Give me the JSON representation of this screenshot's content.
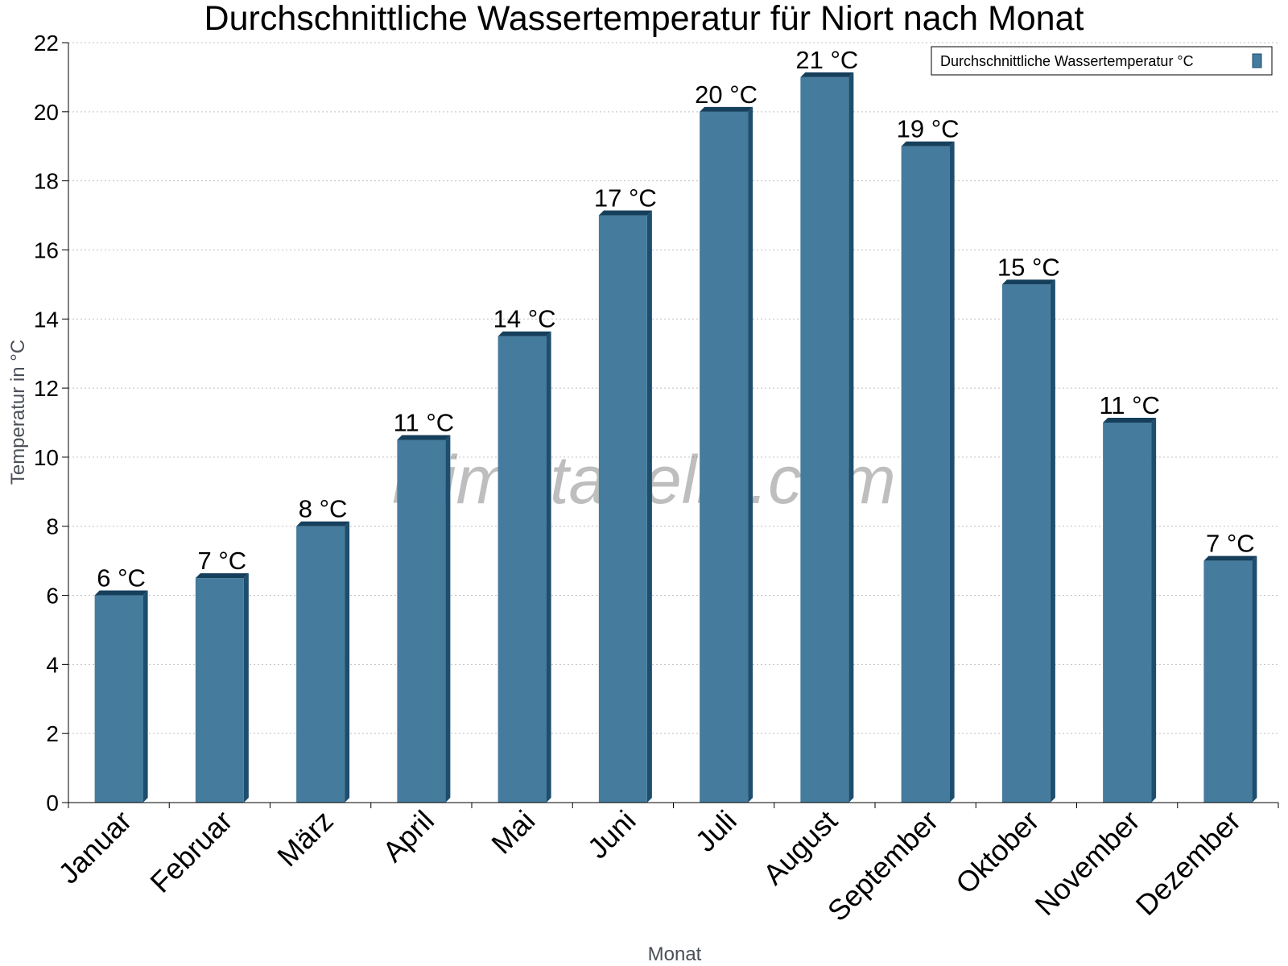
{
  "watermark": "klimatabelle.com",
  "colors": {
    "bar": "#457b9d",
    "bar_side": "#1d4e6e",
    "bar_top": "#163f5c",
    "grid": "#c0c0c0",
    "axis": "#000000"
  },
  "chart_data": {
    "type": "bar",
    "title": "Durchschnittliche Wassertemperatur für Niort nach Monat",
    "xlabel": "Monat",
    "ylabel": "Temperatur in °C",
    "ylim": [
      0,
      22
    ],
    "yticks": [
      0,
      2,
      4,
      6,
      8,
      10,
      12,
      14,
      16,
      18,
      20,
      22
    ],
    "grid": true,
    "legend_position": "top-right",
    "categories": [
      "Januar",
      "Februar",
      "März",
      "April",
      "Mai",
      "Juni",
      "Juli",
      "August",
      "September",
      "Oktober",
      "November",
      "Dezember"
    ],
    "series": [
      {
        "name": "Durchschnittliche Wassertemperatur °C",
        "values": [
          6,
          6.5,
          8,
          10.5,
          13.5,
          17,
          20,
          21,
          19,
          15,
          11,
          7
        ],
        "labels": [
          "6 °C",
          "7 °C",
          "8 °C",
          "11 °C",
          "14 °C",
          "17 °C",
          "20 °C",
          "21 °C",
          "19 °C",
          "15 °C",
          "11 °C",
          "7 °C"
        ]
      }
    ]
  }
}
